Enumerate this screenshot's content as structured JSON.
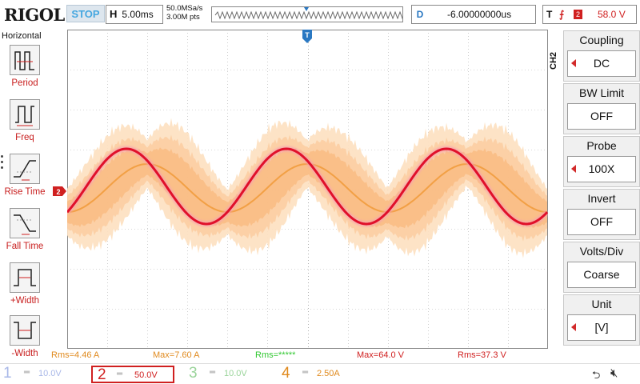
{
  "header": {
    "brand": "RIGOL",
    "run_state": "STOP",
    "horizontal_key": "H",
    "timebase": "5.00ms",
    "sample_rate": "50.0MSa/s",
    "memory_depth": "3.00M pts",
    "delay_key": "D",
    "delay_value": "-6.00000000us",
    "trigger_key": "T",
    "trigger_source": "2",
    "trigger_level": "58.0 V"
  },
  "left_menu": {
    "title": "Horizontal",
    "items": [
      {
        "label": "Period",
        "icon": "period-icon"
      },
      {
        "label": "Freq",
        "icon": "freq-icon"
      },
      {
        "label": "Rise Time",
        "icon": "rise-time-icon"
      },
      {
        "label": "Fall Time",
        "icon": "fall-time-icon"
      },
      {
        "label": "+Width",
        "icon": "positive-width-icon"
      },
      {
        "label": "-Width",
        "icon": "negative-width-icon"
      }
    ]
  },
  "right_menu": {
    "channel_tab": "CH2",
    "items": [
      {
        "label": "Coupling",
        "value": "DC"
      },
      {
        "label": "BW Limit",
        "value": "OFF"
      },
      {
        "label": "Probe",
        "value": "100X"
      },
      {
        "label": "Invert",
        "value": "OFF"
      },
      {
        "label": "Volts/Div",
        "value": "Coarse"
      },
      {
        "label": "Unit",
        "value": "[V]"
      }
    ]
  },
  "markers": {
    "trigger_position": "T",
    "channel2_ground": "2",
    "trigger_level_marker": "T"
  },
  "measurements": [
    {
      "text": "Rms=4.46 A",
      "color": "#e08a1e"
    },
    {
      "text": "Max=7.60 A",
      "color": "#e08a1e"
    },
    {
      "text": "Rms=*****",
      "color": "#32c832"
    },
    {
      "text": "Max=64.0 V",
      "color": "#d02020"
    },
    {
      "text": "Rms=37.3 V",
      "color": "#d02020"
    }
  ],
  "channels": [
    {
      "num": "1",
      "scale": "10.0V",
      "color": "#a9b8e8"
    },
    {
      "num": "2",
      "scale": "50.0V",
      "color": "#d02020"
    },
    {
      "num": "3",
      "scale": "10.0V",
      "color": "#9ad49a"
    },
    {
      "num": "4",
      "scale": "2.50A",
      "color": "#e08a1e"
    }
  ],
  "colors": {
    "ch2": "#d02020",
    "ch4": "#f0a050",
    "grid": "#b0b0b0",
    "accent": "#2a78c2"
  }
}
